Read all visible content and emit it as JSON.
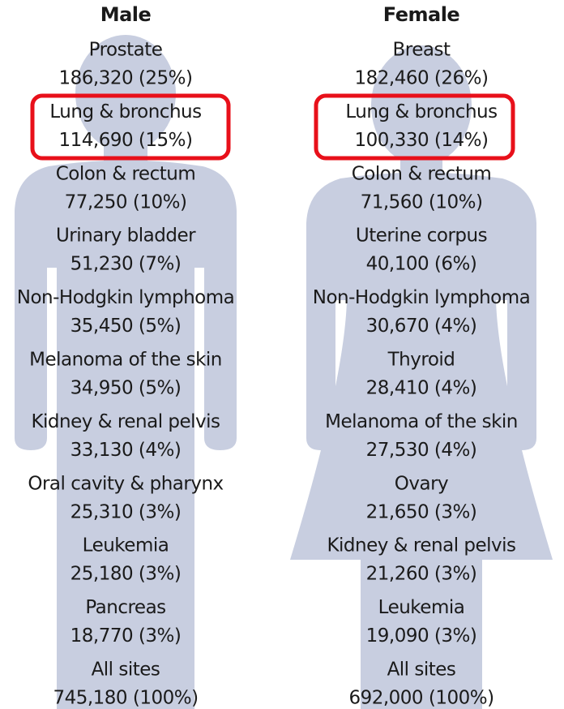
{
  "columns": [
    {
      "title": "Male",
      "items": [
        {
          "site": "Prostate",
          "cases": "186,320 (25%)"
        },
        {
          "site": "Lung & bronchus",
          "cases": "114,690 (15%)"
        },
        {
          "site": "Colon & rectum",
          "cases": "77,250 (10%)"
        },
        {
          "site": "Urinary bladder",
          "cases": "51,230 (7%)"
        },
        {
          "site": "Non-Hodgkin lymphoma",
          "cases": "35,450 (5%)"
        },
        {
          "site": "Melanoma of the skin",
          "cases": "34,950 (5%)"
        },
        {
          "site": "Kidney & renal pelvis",
          "cases": "33,130 (4%)"
        },
        {
          "site": "Oral cavity & pharynx",
          "cases": "25,310 (3%)"
        },
        {
          "site": "Leukemia",
          "cases": "25,180 (3%)"
        },
        {
          "site": "Pancreas",
          "cases": "18,770 (3%)"
        },
        {
          "site": "All sites",
          "cases": "745,180  (100%)"
        }
      ]
    },
    {
      "title": "Female",
      "items": [
        {
          "site": "Breast",
          "cases": "182,460 (26%)"
        },
        {
          "site": "Lung & bronchus",
          "cases": "100,330 (14%)"
        },
        {
          "site": "Colon & rectum",
          "cases": "71,560 (10%)"
        },
        {
          "site": "Uterine corpus",
          "cases": "40,100 (6%)"
        },
        {
          "site": "Non-Hodgkin lymphoma",
          "cases": "30,670 (4%)"
        },
        {
          "site": "Thyroid",
          "cases": "28,410 (4%)"
        },
        {
          "site": "Melanoma of the skin",
          "cases": "27,530 (4%)"
        },
        {
          "site": "Ovary",
          "cases": "21,650 (3%)"
        },
        {
          "site": "Kidney & renal pelvis",
          "cases": "21,260 (3%)"
        },
        {
          "site": "Leukemia",
          "cases": "19,090 (3%)"
        },
        {
          "site": "All sites",
          "cases": "692,000  (100%)"
        }
      ]
    }
  ]
}
